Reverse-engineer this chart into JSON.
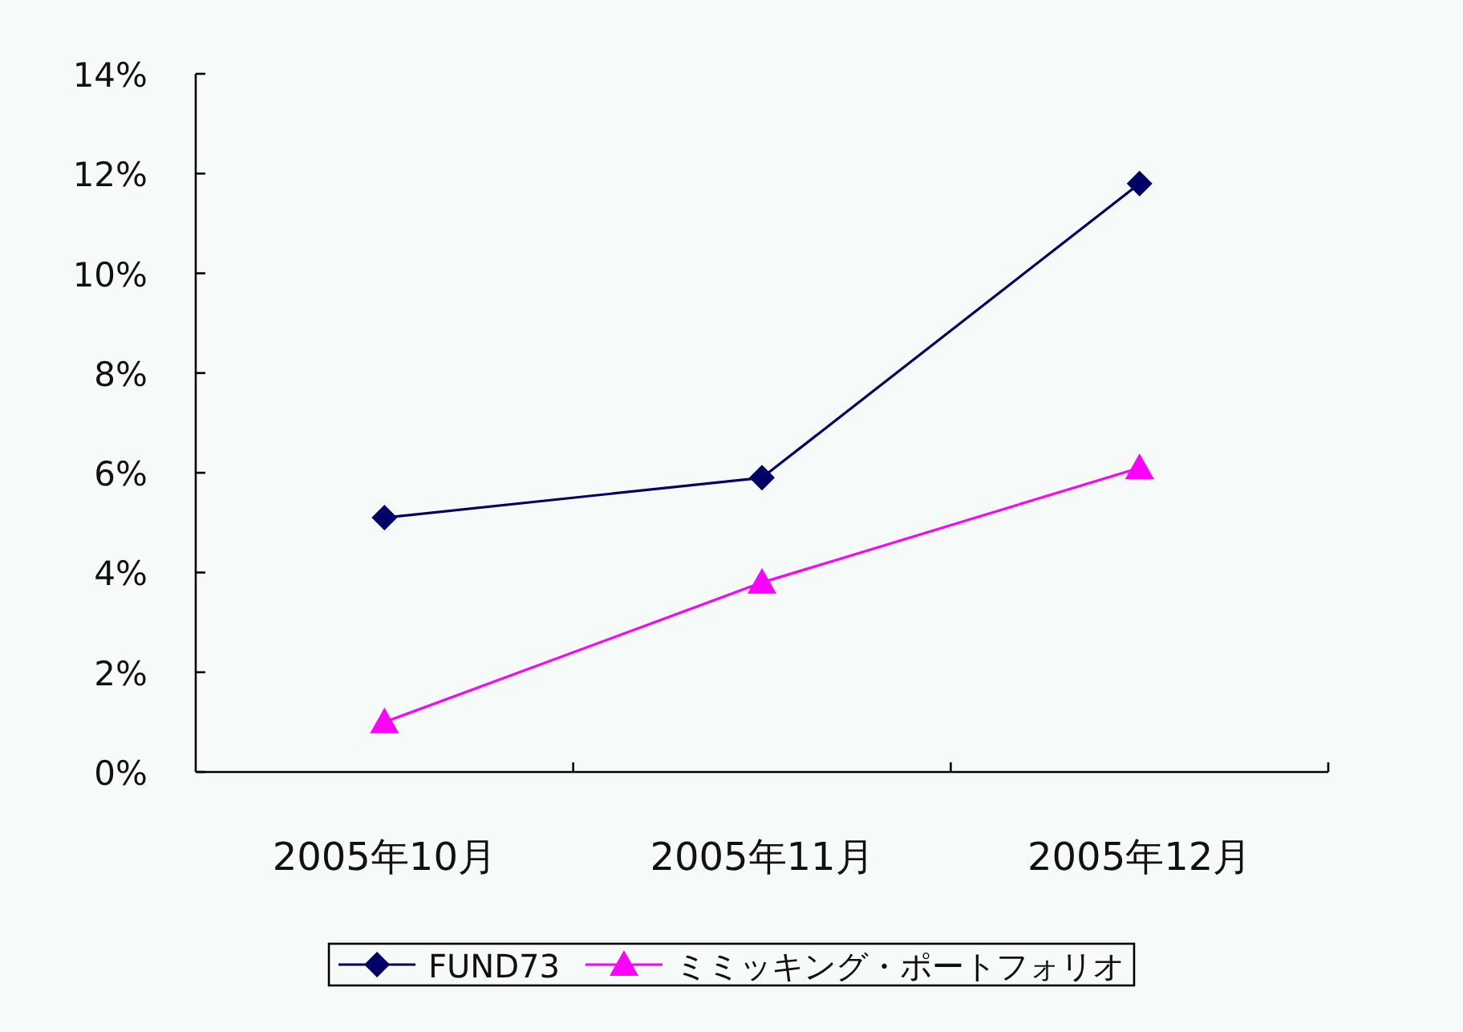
{
  "chart_data": {
    "type": "line",
    "categories": [
      "2005年10月",
      "2005年11月",
      "2005年12月"
    ],
    "series": [
      {
        "name": "FUND73",
        "color": "#000066",
        "marker": "diamond",
        "values": [
          5.1,
          5.9,
          11.8
        ]
      },
      {
        "name": "ミミッキング・ポートフォリオ",
        "color": "#ff00ff",
        "marker": "triangle",
        "values": [
          1.0,
          3.8,
          6.1
        ]
      }
    ],
    "ylim": [
      0,
      14
    ],
    "yticks": [
      {
        "value": 0,
        "label": "0%"
      },
      {
        "value": 2,
        "label": "2%"
      },
      {
        "value": 4,
        "label": "4%"
      },
      {
        "value": 6,
        "label": "6%"
      },
      {
        "value": 8,
        "label": "8%"
      },
      {
        "value": 10,
        "label": "10%"
      },
      {
        "value": 12,
        "label": "12%"
      },
      {
        "value": 14,
        "label": "14%"
      }
    ],
    "grid": false,
    "legend": "bottom"
  }
}
